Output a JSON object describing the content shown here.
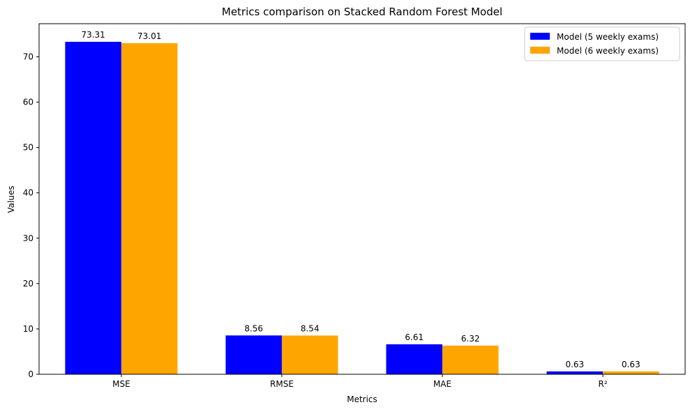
{
  "chart_data": {
    "type": "bar",
    "title": "Metrics comparison on Stacked Random Forest Model",
    "xlabel": "Metrics",
    "ylabel": "Values",
    "categories": [
      "MSE",
      "RMSE",
      "MAE",
      "R²"
    ],
    "series": [
      {
        "name": "Model (5 weekly exams)",
        "color": "#0000ff",
        "values": [
          73.31,
          8.56,
          6.61,
          0.63
        ],
        "labels": [
          "73.31",
          "8.56",
          "6.61",
          "0.63"
        ]
      },
      {
        "name": "Model (6 weekly exams)",
        "color": "#ffa500",
        "values": [
          73.01,
          8.54,
          6.32,
          0.63
        ],
        "labels": [
          "73.01",
          "8.54",
          "6.32",
          "0.63"
        ]
      }
    ],
    "ylim": [
      0,
      77.3
    ],
    "yticks": [
      0,
      10,
      20,
      30,
      40,
      50,
      60,
      70
    ],
    "grid": false,
    "legend_position": "top-right"
  }
}
